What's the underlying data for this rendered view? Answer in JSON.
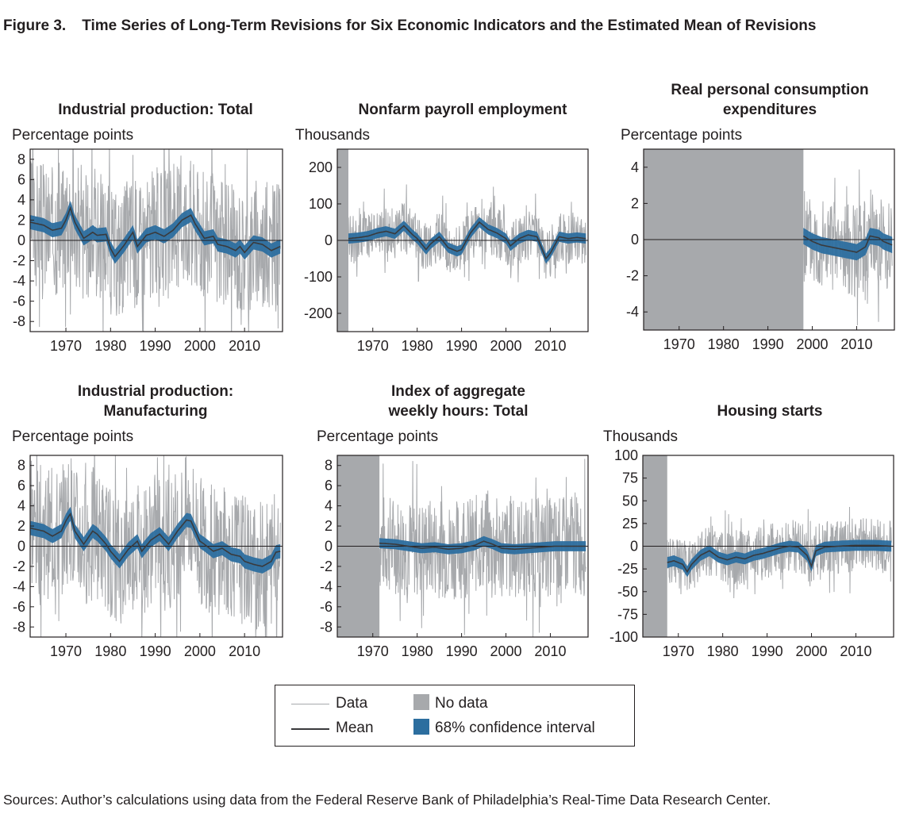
{
  "figure": {
    "number": "Figure 3.",
    "title": "Time Series of Long-Term Revisions for Six Economic Indicators and the Estimated Mean of Revisions"
  },
  "colors": {
    "data": "#a7a9ac",
    "mean": "#3a3a3c",
    "ci": "#2c6e9f",
    "no_data": "#a7a9ac",
    "axis": "#231f20"
  },
  "chart_data": [
    {
      "type": "line",
      "title": "Industrial production: Total",
      "ylabel": "Percentage points",
      "xlim": [
        1962,
        2018.5
      ],
      "ylim": [
        -9,
        9
      ],
      "xticks": [
        1970,
        1980,
        1990,
        2000,
        2010
      ],
      "yticks": [
        -8,
        -6,
        -4,
        -2,
        0,
        2,
        4,
        6,
        8
      ],
      "no_data": [],
      "data_amplitude": 6.5,
      "mean": [
        [
          1962,
          1.8
        ],
        [
          1965,
          1.5
        ],
        [
          1967,
          1.0
        ],
        [
          1969,
          1.2
        ],
        [
          1970,
          2.0
        ],
        [
          1971,
          3.2
        ],
        [
          1972,
          1.8
        ],
        [
          1974,
          0.2
        ],
        [
          1976,
          0.8
        ],
        [
          1977,
          0.5
        ],
        [
          1979,
          0.6
        ],
        [
          1980,
          -0.8
        ],
        [
          1981,
          -1.6
        ],
        [
          1983,
          -0.5
        ],
        [
          1985,
          0.8
        ],
        [
          1986,
          -0.6
        ],
        [
          1988,
          0.5
        ],
        [
          1990,
          0.8
        ],
        [
          1992,
          0.4
        ],
        [
          1994,
          1.0
        ],
        [
          1996,
          2.0
        ],
        [
          1998,
          2.5
        ],
        [
          1999,
          1.6
        ],
        [
          2001,
          0.2
        ],
        [
          2003,
          0.4
        ],
        [
          2004,
          -0.4
        ],
        [
          2006,
          -0.6
        ],
        [
          2008,
          -1.0
        ],
        [
          2009,
          -0.6
        ],
        [
          2010,
          -1.2
        ],
        [
          2012,
          -0.2
        ],
        [
          2014,
          -0.4
        ],
        [
          2016,
          -1.0
        ],
        [
          2018,
          -0.6
        ]
      ],
      "ci_halfwidth": 0.7
    },
    {
      "type": "line",
      "title": "Nonfarm payroll employment",
      "ylabel": "Thousands",
      "xlim": [
        1962,
        2018.5
      ],
      "ylim": [
        -250,
        250
      ],
      "xticks": [
        1970,
        1980,
        1990,
        2000,
        2010
      ],
      "yticks": [
        -200,
        -100,
        0,
        100,
        200
      ],
      "no_data": [
        [
          1962,
          1964.5
        ]
      ],
      "data_amplitude": 70,
      "mean": [
        [
          1964.5,
          5
        ],
        [
          1967,
          8
        ],
        [
          1969,
          12
        ],
        [
          1971,
          20
        ],
        [
          1973,
          25
        ],
        [
          1975,
          18
        ],
        [
          1977,
          40
        ],
        [
          1979,
          15
        ],
        [
          1980,
          5
        ],
        [
          1982,
          -25
        ],
        [
          1983,
          -10
        ],
        [
          1985,
          10
        ],
        [
          1987,
          -20
        ],
        [
          1989,
          -30
        ],
        [
          1990,
          -25
        ],
        [
          1992,
          20
        ],
        [
          1994,
          50
        ],
        [
          1996,
          30
        ],
        [
          1998,
          20
        ],
        [
          2000,
          5
        ],
        [
          2001,
          -15
        ],
        [
          2003,
          5
        ],
        [
          2005,
          15
        ],
        [
          2007,
          10
        ],
        [
          2009,
          -50
        ],
        [
          2010,
          -35
        ],
        [
          2012,
          10
        ],
        [
          2014,
          5
        ],
        [
          2016,
          8
        ],
        [
          2018,
          5
        ]
      ],
      "ci_halfwidth": 14
    },
    {
      "type": "line",
      "title": "Real personal consumption expenditures",
      "ylabel": "Percentage points",
      "xlim": [
        1962,
        2018.5
      ],
      "ylim": [
        -5,
        5
      ],
      "xticks": [
        1970,
        1980,
        1990,
        2000,
        2010
      ],
      "yticks": [
        -4,
        -2,
        0,
        2,
        4
      ],
      "no_data": [
        [
          1962,
          1998
        ]
      ],
      "data_amplitude": 2.6,
      "mean": [
        [
          1998,
          0.2
        ],
        [
          2000,
          -0.1
        ],
        [
          2002,
          -0.3
        ],
        [
          2004,
          -0.4
        ],
        [
          2006,
          -0.5
        ],
        [
          2008,
          -0.6
        ],
        [
          2010,
          -0.7
        ],
        [
          2012,
          -0.4
        ],
        [
          2013,
          0.2
        ],
        [
          2015,
          0.1
        ],
        [
          2016,
          -0.1
        ],
        [
          2018,
          -0.3
        ]
      ],
      "ci_halfwidth": 0.45
    },
    {
      "type": "line",
      "title": "Industrial production: Manufacturing",
      "ylabel": "Percentage points",
      "xlim": [
        1962,
        2018.5
      ],
      "ylim": [
        -9,
        9
      ],
      "xticks": [
        1970,
        1980,
        1990,
        2000,
        2010
      ],
      "yticks": [
        -8,
        -6,
        -4,
        -2,
        0,
        2,
        4,
        6,
        8
      ],
      "no_data": [],
      "data_amplitude": 6.5,
      "mean": [
        [
          1962,
          1.8
        ],
        [
          1965,
          1.5
        ],
        [
          1967,
          1.0
        ],
        [
          1969,
          1.5
        ],
        [
          1970,
          2.5
        ],
        [
          1971,
          3.2
        ],
        [
          1972,
          1.5
        ],
        [
          1974,
          0.2
        ],
        [
          1976,
          1.5
        ],
        [
          1977,
          1.2
        ],
        [
          1979,
          0.2
        ],
        [
          1980,
          -0.5
        ],
        [
          1982,
          -1.5
        ],
        [
          1984,
          -0.3
        ],
        [
          1986,
          0.5
        ],
        [
          1987,
          -0.5
        ],
        [
          1989,
          0.6
        ],
        [
          1991,
          1.2
        ],
        [
          1993,
          0.2
        ],
        [
          1995,
          1.5
        ],
        [
          1997,
          2.6
        ],
        [
          1998,
          2.5
        ],
        [
          2000,
          0.5
        ],
        [
          2001,
          0.2
        ],
        [
          2003,
          -0.5
        ],
        [
          2005,
          -0.2
        ],
        [
          2007,
          -0.8
        ],
        [
          2009,
          -1.0
        ],
        [
          2010,
          -1.5
        ],
        [
          2012,
          -1.8
        ],
        [
          2014,
          -2.0
        ],
        [
          2016,
          -1.5
        ],
        [
          2017,
          -0.6
        ],
        [
          2018,
          -0.5
        ]
      ],
      "ci_halfwidth": 0.7
    },
    {
      "type": "line",
      "title": "Index of aggregate weekly hours: Total",
      "ylabel": "Percentage points",
      "xlim": [
        1962,
        2018.5
      ],
      "ylim": [
        -9,
        9
      ],
      "xticks": [
        1970,
        1980,
        1990,
        2000,
        2010
      ],
      "yticks": [
        -8,
        -6,
        -4,
        -2,
        0,
        2,
        4,
        6,
        8
      ],
      "no_data": [
        [
          1962,
          1971.5
        ]
      ],
      "data_amplitude": 5.0,
      "mean": [
        [
          1971.5,
          0.3
        ],
        [
          1975,
          0.2
        ],
        [
          1978,
          0.0
        ],
        [
          1981,
          -0.2
        ],
        [
          1984,
          -0.1
        ],
        [
          1987,
          -0.3
        ],
        [
          1990,
          -0.2
        ],
        [
          1993,
          0.1
        ],
        [
          1995,
          0.5
        ],
        [
          1997,
          0.2
        ],
        [
          1999,
          -0.2
        ],
        [
          2002,
          -0.3
        ],
        [
          2005,
          -0.2
        ],
        [
          2008,
          -0.1
        ],
        [
          2011,
          0.0
        ],
        [
          2014,
          0.0
        ],
        [
          2018,
          0.0
        ]
      ],
      "ci_halfwidth": 0.5
    },
    {
      "type": "line",
      "title": "Housing starts",
      "ylabel": "Thousands",
      "xlim": [
        1962,
        2018.5
      ],
      "ylim": [
        -100,
        100
      ],
      "xticks": [
        1970,
        1980,
        1990,
        2000,
        2010
      ],
      "yticks": [
        -100,
        -75,
        -50,
        -25,
        0,
        25,
        50,
        75,
        100
      ],
      "no_data": [
        [
          1962,
          1967.5
        ]
      ],
      "data_amplitude": 30,
      "mean": [
        [
          1967.5,
          -18
        ],
        [
          1969,
          -16
        ],
        [
          1971,
          -20
        ],
        [
          1972,
          -28
        ],
        [
          1973,
          -20
        ],
        [
          1975,
          -10
        ],
        [
          1977,
          -5
        ],
        [
          1979,
          -12
        ],
        [
          1981,
          -15
        ],
        [
          1983,
          -12
        ],
        [
          1985,
          -14
        ],
        [
          1987,
          -10
        ],
        [
          1989,
          -8
        ],
        [
          1991,
          -5
        ],
        [
          1993,
          -2
        ],
        [
          1995,
          0
        ],
        [
          1997,
          -1
        ],
        [
          1999,
          -10
        ],
        [
          2000,
          -22
        ],
        [
          2001,
          -5
        ],
        [
          2003,
          -1
        ],
        [
          2006,
          0
        ],
        [
          2010,
          1
        ],
        [
          2014,
          1
        ],
        [
          2018,
          0
        ]
      ],
      "ci_halfwidth": 6
    }
  ],
  "legend": {
    "data": "Data",
    "no_data": "No data",
    "mean": "Mean",
    "ci": "68% confidence interval"
  },
  "sources": "Sources: Author’s calculations using data from the Federal Reserve Bank of Philadelphia’s Real-Time Data Research Center."
}
